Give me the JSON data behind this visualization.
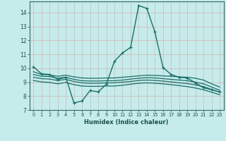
{
  "xlabel": "Humidex (Indice chaleur)",
  "bg_color": "#c5ecea",
  "grid_color": "#d4a0a0",
  "line_color": "#1a6e6a",
  "xlim": [
    -0.5,
    23.5
  ],
  "ylim": [
    7,
    14.8
  ],
  "yticks": [
    7,
    8,
    9,
    10,
    11,
    12,
    13,
    14
  ],
  "xticks": [
    0,
    1,
    2,
    3,
    4,
    5,
    6,
    7,
    8,
    9,
    10,
    11,
    12,
    13,
    14,
    15,
    16,
    17,
    18,
    19,
    20,
    21,
    22,
    23
  ],
  "lines": [
    {
      "x": [
        0,
        1,
        2,
        3,
        4,
        5,
        6,
        7,
        8,
        9,
        10,
        11,
        12,
        13,
        14,
        15,
        16,
        17,
        18,
        19,
        20,
        21,
        22,
        23
      ],
      "y": [
        10.1,
        9.6,
        9.55,
        9.2,
        9.35,
        7.5,
        7.65,
        8.4,
        8.3,
        8.85,
        10.5,
        11.1,
        11.5,
        14.5,
        14.3,
        12.6,
        10.05,
        9.55,
        9.35,
        9.3,
        8.95,
        8.6,
        8.45,
        8.3
      ],
      "marker": "+",
      "lw": 1.0
    },
    {
      "x": [
        0,
        1,
        2,
        3,
        4,
        5,
        6,
        7,
        8,
        9,
        10,
        11,
        12,
        13,
        14,
        15,
        16,
        17,
        18,
        19,
        20,
        21,
        22,
        23
      ],
      "y": [
        9.75,
        9.55,
        9.52,
        9.42,
        9.5,
        9.38,
        9.3,
        9.28,
        9.28,
        9.3,
        9.3,
        9.35,
        9.4,
        9.45,
        9.5,
        9.48,
        9.45,
        9.42,
        9.38,
        9.35,
        9.28,
        9.15,
        8.88,
        8.65
      ],
      "marker": null,
      "lw": 0.9
    },
    {
      "x": [
        0,
        1,
        2,
        3,
        4,
        5,
        6,
        7,
        8,
        9,
        10,
        11,
        12,
        13,
        14,
        15,
        16,
        17,
        18,
        19,
        20,
        21,
        22,
        23
      ],
      "y": [
        9.55,
        9.42,
        9.4,
        9.28,
        9.35,
        9.2,
        9.1,
        9.08,
        9.08,
        9.1,
        9.1,
        9.15,
        9.22,
        9.28,
        9.32,
        9.3,
        9.25,
        9.2,
        9.15,
        9.1,
        9.0,
        8.88,
        8.65,
        8.42
      ],
      "marker": null,
      "lw": 0.9
    },
    {
      "x": [
        0,
        1,
        2,
        3,
        4,
        5,
        6,
        7,
        8,
        9,
        10,
        11,
        12,
        13,
        14,
        15,
        16,
        17,
        18,
        19,
        20,
        21,
        22,
        23
      ],
      "y": [
        9.35,
        9.25,
        9.22,
        9.12,
        9.2,
        9.05,
        8.95,
        8.92,
        8.92,
        8.95,
        8.95,
        9.0,
        9.05,
        9.12,
        9.15,
        9.12,
        9.08,
        9.02,
        8.95,
        8.9,
        8.8,
        8.68,
        8.48,
        8.28
      ],
      "marker": null,
      "lw": 0.9
    },
    {
      "x": [
        0,
        1,
        2,
        3,
        4,
        5,
        6,
        7,
        8,
        9,
        10,
        11,
        12,
        13,
        14,
        15,
        16,
        17,
        18,
        19,
        20,
        21,
        22,
        23
      ],
      "y": [
        9.12,
        9.02,
        8.98,
        8.88,
        8.98,
        8.82,
        8.72,
        8.7,
        8.7,
        8.72,
        8.72,
        8.78,
        8.85,
        8.92,
        8.95,
        8.92,
        8.88,
        8.82,
        8.75,
        8.68,
        8.58,
        8.45,
        8.28,
        8.1
      ],
      "marker": null,
      "lw": 0.9
    }
  ]
}
